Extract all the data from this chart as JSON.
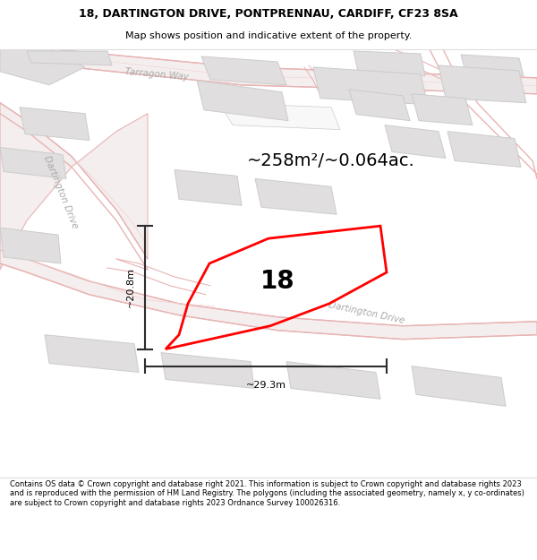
{
  "title_line1": "18, DARTINGTON DRIVE, PONTPRENNAU, CARDIFF, CF23 8SA",
  "title_line2": "Map shows position and indicative extent of the property.",
  "footer_text": "Contains OS data © Crown copyright and database right 2021. This information is subject to Crown copyright and database rights 2023 and is reproduced with the permission of HM Land Registry. The polygons (including the associated geometry, namely x, y co-ordinates) are subject to Crown copyright and database rights 2023 Ordnance Survey 100026316.",
  "area_text": "~258m²/~0.064ac.",
  "dim_vertical": "~20.8m",
  "dim_horizontal": "~29.3m",
  "label_number": "18",
  "map_bg": "#f2f0f0",
  "road_line_color": "#e8b4b4",
  "building_fill": "#e0dede",
  "building_stroke": "#cccccc",
  "plot_color": "#ff0000",
  "white": "#ffffff",
  "dim_line_color": "#2c2c2c",
  "road_label_color": "#aaaaaa",
  "title_fontsize": 9,
  "subtitle_fontsize": 8,
  "area_fontsize": 14,
  "dim_fontsize": 8,
  "num_fontsize": 20,
  "road_label_fontsize": 7.5
}
